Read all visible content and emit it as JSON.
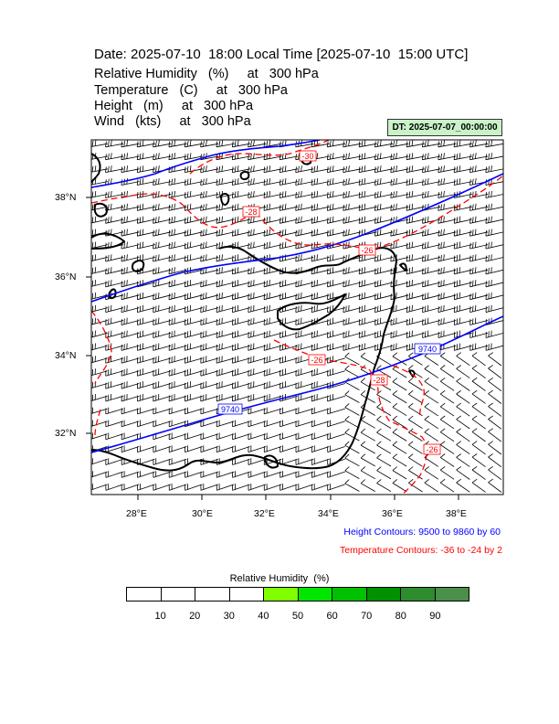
{
  "header": {
    "title": "Date: 2025-07-10  18:00 Local Time [2025-07-10  15:00 UTC]",
    "variables": [
      "Relative Humidity   (%)     at   300 hPa",
      "Temperature   (C)     at   300 hPa",
      "Height   (m)     at   300 hPa",
      "Wind   (kts)     at   300 hPa"
    ],
    "dt_label": "DT: 2025-07-07_00:00:00"
  },
  "map": {
    "lat_labels": [
      "38°N",
      "36°N",
      "34°N",
      "32°N"
    ],
    "lon_labels": [
      "28°E",
      "30°E",
      "32°E",
      "34°E",
      "36°E",
      "38°E"
    ],
    "height_contour_labels": [
      "9740",
      "9740"
    ],
    "temperature_contour_labels": [
      "-30",
      "-28",
      "-26",
      "-26",
      "-28",
      "-26"
    ],
    "colors": {
      "height": "#0000ff",
      "temperature": "#ff0000",
      "coast": "#000000"
    }
  },
  "notes": {
    "height_contours": "Height Contours: 9500 to 9860 by 60",
    "temperature_contours": "Temperature Contours: -36 to -24 by 2"
  },
  "legend": {
    "title": "Relative Humidity  (%)",
    "ticks": [
      "10",
      "20",
      "30",
      "40",
      "50",
      "60",
      "70",
      "80",
      "90"
    ],
    "colors": [
      "#ffffff",
      "#ffffff",
      "#ffffff",
      "#ffffff",
      "#7fff00",
      "#00e600",
      "#00c000",
      "#009000",
      "#2e8b2e",
      "#4a8f4a"
    ]
  }
}
